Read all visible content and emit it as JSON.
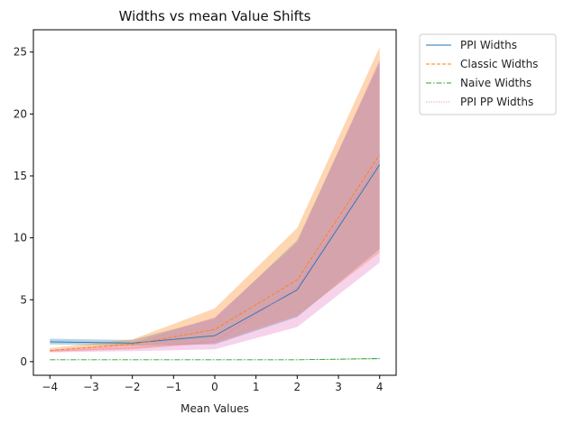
{
  "chart_data": {
    "type": "line",
    "title": "Widths vs mean Value Shifts",
    "xlabel": "Mean Values",
    "ylabel": "",
    "xlim": [
      -4.4,
      4.4
    ],
    "ylim": [
      -1.1,
      26.8
    ],
    "xticks": [
      -4,
      -3,
      -2,
      -1,
      0,
      1,
      2,
      3,
      4
    ],
    "xtick_labels": [
      "−4",
      "−3",
      "−2",
      "−1",
      "0",
      "1",
      "2",
      "3",
      "4"
    ],
    "yticks": [
      0,
      5,
      10,
      15,
      20,
      25
    ],
    "ytick_labels": [
      "0",
      "5",
      "10",
      "15",
      "20",
      "25"
    ],
    "grid": false,
    "legend_position": "outside-top-right",
    "x": [
      -4,
      -2,
      0,
      2,
      4
    ],
    "series": [
      {
        "name": "PPI Widths",
        "color": "#1f77b4",
        "linestyle": "solid",
        "values": [
          1.6,
          1.5,
          2.1,
          5.8,
          15.9
        ],
        "band_lower": [
          1.4,
          1.3,
          1.4,
          3.6,
          9.1
        ],
        "band_upper": [
          1.85,
          1.75,
          3.5,
          9.8,
          24.2
        ]
      },
      {
        "name": "Classic Widths",
        "color": "#ff7f0e",
        "linestyle": "dashed",
        "values": [
          0.9,
          1.4,
          2.6,
          6.6,
          16.7
        ],
        "band_lower": [
          0.8,
          1.0,
          1.5,
          3.7,
          8.8
        ],
        "band_upper": [
          1.1,
          1.8,
          4.3,
          10.8,
          25.4
        ]
      },
      {
        "name": "Naive Widths",
        "color": "#2ca02c",
        "linestyle": "dashdot",
        "values": [
          0.15,
          0.15,
          0.15,
          0.15,
          0.25
        ],
        "band_lower": [
          0.13,
          0.13,
          0.13,
          0.13,
          0.2
        ],
        "band_upper": [
          0.17,
          0.17,
          0.17,
          0.17,
          0.3
        ]
      },
      {
        "name": "PPI PP Widths",
        "color": "#e377c2",
        "linestyle": "dotted",
        "values": [
          0.85,
          1.1,
          1.6,
          6.0,
          16.2
        ],
        "band_lower": [
          0.75,
          0.85,
          1.0,
          2.8,
          8.0
        ],
        "band_upper": [
          0.95,
          1.5,
          3.6,
          9.6,
          24.4
        ]
      }
    ]
  }
}
